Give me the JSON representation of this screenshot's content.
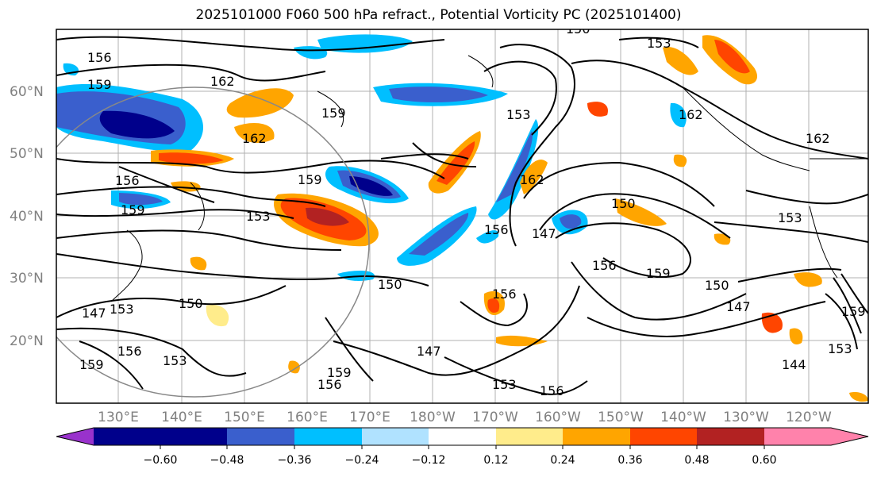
{
  "title": "2025101000 F060 500 hPa refract., Potential Vorticity PC (2025101400)",
  "lat_labels": [
    "60°N",
    "50°N",
    "40°N",
    "30°N",
    "20°N"
  ],
  "lon_labels": [
    "130°E",
    "140°E",
    "150°E",
    "160°E",
    "170°E",
    "180°W",
    "170°W",
    "160°W",
    "150°W",
    "140°W",
    "130°W",
    "120°W"
  ],
  "contour_labels": [
    "156",
    "159",
    "162",
    "159",
    "162",
    "162",
    "159",
    "156",
    "159",
    "153",
    "150",
    "147",
    "150",
    "153",
    "150",
    "156",
    "159",
    "156",
    "153",
    "156",
    "159",
    "147",
    "144",
    "153",
    "156",
    "159",
    "162",
    "153",
    "153",
    "156",
    "150",
    "147",
    "159",
    "156",
    "153",
    "150",
    "153",
    "147",
    "162"
  ],
  "colorbar": {
    "tick_labels": [
      "−0.60",
      "−0.48",
      "−0.36",
      "−0.24",
      "−0.12",
      "0.12",
      "0.24",
      "0.36",
      "0.48",
      "0.60"
    ],
    "colors": [
      "#9932cc",
      "#00008b",
      "#3a5fcd",
      "#00bfff",
      "#b0e2ff",
      "#ffffff",
      "#ffec8b",
      "#ffa500",
      "#ff4500",
      "#b22222",
      "#ff82ab"
    ]
  }
}
